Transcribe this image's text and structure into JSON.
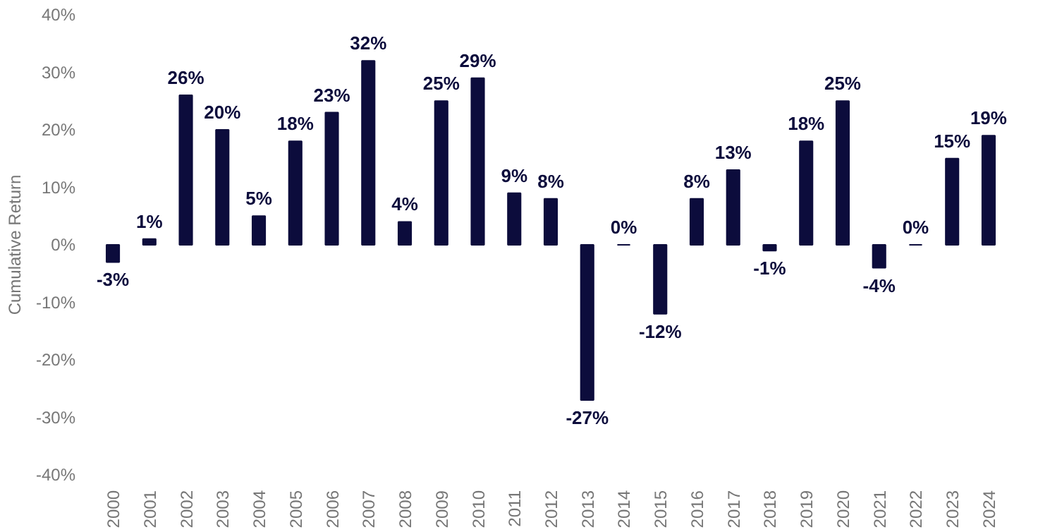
{
  "chart_data": {
    "type": "bar",
    "ylabel": "Cumulative Return",
    "categories": [
      "2000",
      "2001",
      "2002",
      "2003",
      "2004",
      "2005",
      "2006",
      "2007",
      "2008",
      "2009",
      "2010",
      "2011",
      "2012",
      "2013",
      "2014",
      "2015",
      "2016",
      "2017",
      "2018",
      "2019",
      "2020",
      "2021",
      "2022",
      "2023",
      "2024"
    ],
    "values": [
      -3,
      1,
      26,
      20,
      5,
      18,
      23,
      32,
      4,
      25,
      29,
      9,
      8,
      -27,
      0,
      -12,
      8,
      13,
      -1,
      18,
      25,
      -4,
      0,
      15,
      19
    ],
    "value_labels": [
      "-3%",
      "1%",
      "26%",
      "20%",
      "5%",
      "18%",
      "23%",
      "32%",
      "4%",
      "25%",
      "29%",
      "9%",
      "8%",
      "-27%",
      "0%",
      "-12%",
      "8%",
      "13%",
      "-1%",
      "18%",
      "25%",
      "-4%",
      "0%",
      "15%",
      "19%"
    ],
    "color": "#0c0c3c",
    "ylim": [
      -40,
      40
    ],
    "yticks": [
      {
        "value": -40,
        "label": "-40%"
      },
      {
        "value": -30,
        "label": "-30%"
      },
      {
        "value": -20,
        "label": "-20%"
      },
      {
        "value": -10,
        "label": "-10%"
      },
      {
        "value": 0,
        "label": "0%"
      },
      {
        "value": 10,
        "label": "10%"
      },
      {
        "value": 20,
        "label": "20%"
      },
      {
        "value": 30,
        "label": "30%"
      },
      {
        "value": 40,
        "label": "40%"
      }
    ],
    "grid": false
  }
}
